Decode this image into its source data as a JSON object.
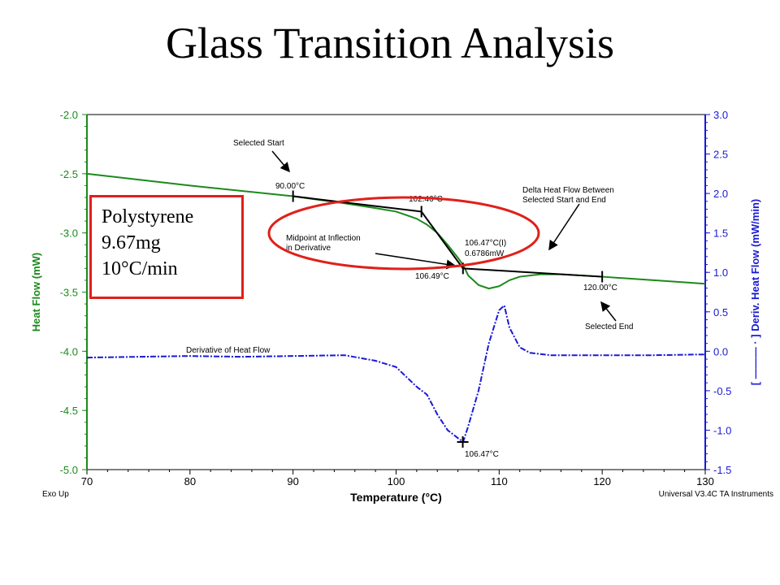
{
  "title": "Glass Transition Analysis",
  "sample_info": [
    "Polystyrene",
    "9.67mg",
    "10°C/min"
  ],
  "footer": {
    "left": "Exo Up",
    "right": "Universal V3.4C TA Instruments"
  },
  "colors": {
    "heat_flow": "#1b8a1b",
    "derivative": "#1a1ad6",
    "highlight": "#e0201a",
    "annotation": "#000000"
  },
  "chart_data": {
    "type": "line",
    "xlabel": "Temperature (°C)",
    "ylabel_left": "Heat Flow (mW)",
    "ylabel_right": "[ ——— · ] Deriv. Heat Flow (mW/min)",
    "xlim": [
      70,
      130
    ],
    "ylim_left": [
      -5.0,
      -2.0
    ],
    "ylim_right": [
      -1.5,
      3.0
    ],
    "x_ticks": [
      "70",
      "80",
      "90",
      "100",
      "110",
      "120",
      "130"
    ],
    "y_left_ticks": [
      "-2.0",
      "-2.5",
      "-3.0",
      "-3.5",
      "-4.0",
      "-4.5",
      "-5.0"
    ],
    "y_right_ticks": [
      "3.0",
      "2.5",
      "2.0",
      "1.5",
      "1.0",
      "0.5",
      "0.0",
      "-0.5",
      "-1.0",
      "-1.5"
    ],
    "series": [
      {
        "name": "",
        "axis": "left",
        "x": [
          70,
          80,
          90,
          95,
          98,
          100,
          102,
          103,
          104,
          105,
          106,
          106.5,
          107,
          108,
          109,
          110,
          111,
          112,
          114,
          116,
          120,
          125,
          130
        ],
        "y": [
          -2.5,
          -2.6,
          -2.69,
          -2.75,
          -2.79,
          -2.82,
          -2.88,
          -2.93,
          -3.0,
          -3.1,
          -3.21,
          -3.27,
          -3.36,
          -3.44,
          -3.47,
          -3.45,
          -3.4,
          -3.37,
          -3.35,
          -3.35,
          -3.37,
          -3.4,
          -3.43
        ]
      },
      {
        "name": "Derivative of Heat Flow",
        "axis": "right",
        "x": [
          70,
          75,
          80,
          85,
          90,
          95,
          98,
          100,
          102,
          103,
          104,
          105,
          106,
          106.5,
          107,
          108,
          109,
          110,
          110.5,
          111,
          112,
          113,
          115,
          120,
          125,
          130
        ],
        "y": [
          -0.08,
          -0.07,
          -0.06,
          -0.07,
          -0.06,
          -0.05,
          -0.12,
          -0.2,
          -0.45,
          -0.55,
          -0.8,
          -1.0,
          -1.1,
          -1.15,
          -0.95,
          -0.5,
          0.1,
          0.52,
          0.58,
          0.3,
          0.05,
          -0.02,
          -0.05,
          -0.05,
          -0.05,
          -0.04
        ]
      }
    ],
    "annotations": [
      {
        "label": "Selected Start",
        "x": 90.0,
        "value": "90.00°C"
      },
      {
        "label": "",
        "x": 102.46,
        "value": "102.46°C"
      },
      {
        "label": "Midpoint at Inflection in Derivative",
        "x": 106.49,
        "value": "106.49°C"
      },
      {
        "label": "",
        "x": 106.47,
        "value": "106.47°C(I)",
        "extra": "0.6786mW"
      },
      {
        "label": "Delta Heat Flow Between Selected Start and End",
        "x": null,
        "value": ""
      },
      {
        "label": "Selected End",
        "x": 120.0,
        "value": "120.00°C"
      },
      {
        "label": "",
        "x": 106.47,
        "value": "106.47°C"
      }
    ]
  }
}
